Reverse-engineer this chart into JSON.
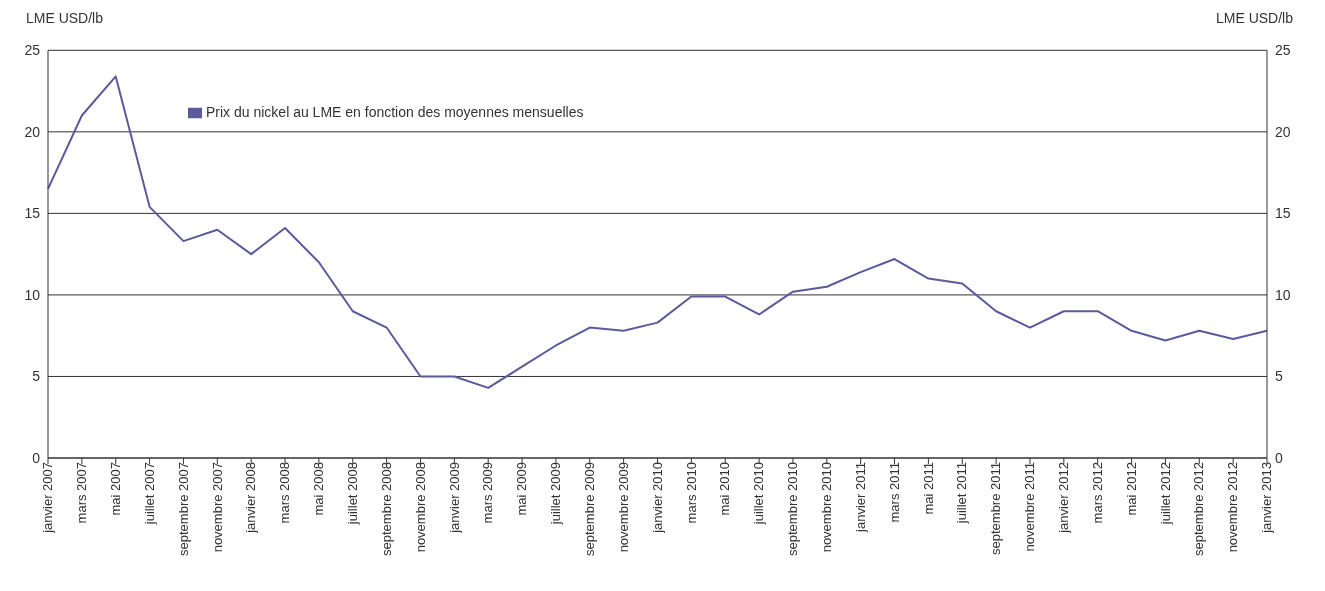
{
  "chart_data": {
    "type": "line",
    "ylabel": "LME USD/lb",
    "y2label": "LME USD/lb",
    "categories": [
      "janvier 2007",
      "mars 2007",
      "mai 2007",
      "juillet 2007",
      "septembre 2007",
      "novembre 2007",
      "janvier 2008",
      "mars 2008",
      "mai 2008",
      "juillet 2008",
      "septembre 2008",
      "novembre 2008",
      "janvier 2009",
      "mars 2009",
      "mai 2009",
      "juillet 2009",
      "septembre 2009",
      "novembre 2009",
      "janvier 2010",
      "mars 2010",
      "mai 2010",
      "juillet 2010",
      "septembre 2010",
      "novembre 2010",
      "janvier 2011",
      "mars 2011",
      "mai 2011",
      "juillet 2011",
      "septembre 2011",
      "novembre 2011",
      "janvier 2012",
      "mars 2012",
      "mai 2012",
      "juillet 2012",
      "septembre 2012",
      "novembre 2012",
      "janvier 2013"
    ],
    "series": [
      {
        "name": "Prix du nickel au LME en fonction des moyennes mensuelles",
        "color": "#5b5a9c",
        "values": [
          16.5,
          21.0,
          23.4,
          15.4,
          13.3,
          14.0,
          12.5,
          14.1,
          12.0,
          9.0,
          8.0,
          5.0,
          5.0,
          4.3,
          5.6,
          6.9,
          8.0,
          7.8,
          8.3,
          9.9,
          9.9,
          8.8,
          10.2,
          10.5,
          11.4,
          12.2,
          11.0,
          10.7,
          9.0,
          8.0,
          9.0,
          9.0,
          7.8,
          7.2,
          7.8,
          7.3,
          7.8
        ]
      }
    ],
    "ylim": [
      0,
      25
    ],
    "yticks": [
      0,
      5,
      10,
      15,
      20,
      25
    ],
    "y2lim": [
      0,
      25
    ],
    "y2ticks": [
      0,
      5,
      10,
      15,
      20,
      25
    ],
    "grid": "y",
    "legend": "top left",
    "marker": "none",
    "line_style": "solid"
  }
}
